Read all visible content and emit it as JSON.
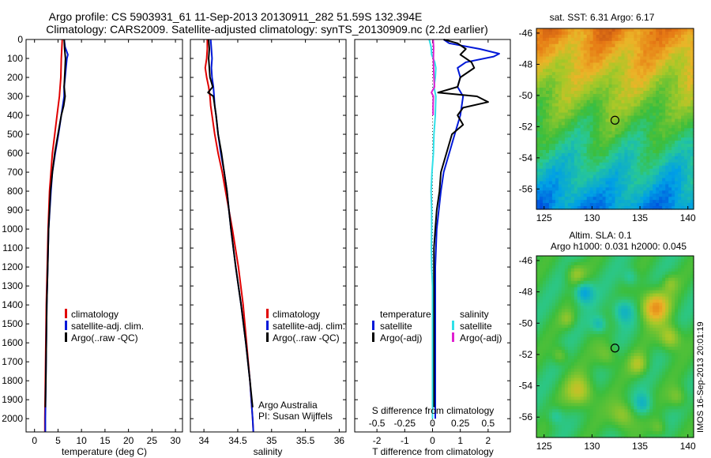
{
  "header": {
    "line1": "Argo profile: CS 5903931_61 11-Sep-2013 20130911_282 51.59S 132.394E",
    "line2": "Climatology: CARS2009. Satellite-adjusted climatology: synTS_20130909.nc (2.2d earlier)"
  },
  "chart_data": [
    {
      "type": "line",
      "panel": "temperature",
      "xlabel": "temperature (deg C)",
      "ylabel": "",
      "xlim": [
        -1.8,
        31.5
      ],
      "ylim": [
        2070,
        0
      ],
      "xticks": [
        0,
        5,
        10,
        15,
        20,
        25,
        30
      ],
      "yticks": [
        0,
        100,
        200,
        300,
        400,
        500,
        600,
        700,
        800,
        900,
        1000,
        1100,
        1200,
        1300,
        1400,
        1500,
        1600,
        1700,
        1800,
        1900,
        2000
      ],
      "legend": [
        "climatology",
        "satellite-adj. clim.",
        "Argo(..raw -QC)"
      ],
      "legend_position": "lower-right",
      "series": [
        {
          "name": "climatology",
          "color": "#e00000",
          "depth": [
            0,
            100,
            200,
            300,
            400,
            500,
            600,
            700,
            800,
            1000,
            1200,
            1400,
            1600,
            1800,
            2000,
            2070
          ],
          "values": [
            5.9,
            5.7,
            5.6,
            5.3,
            4.8,
            4.3,
            3.8,
            3.5,
            3.2,
            2.9,
            2.7,
            2.5,
            2.4,
            2.3,
            2.2,
            2.2
          ]
        },
        {
          "name": "satellite-adj. clim.",
          "color": "#0018d8",
          "depth": [
            0,
            40,
            80,
            100,
            150,
            200,
            250,
            300,
            400,
            500,
            600,
            700,
            800,
            1000,
            1200,
            1400,
            1600,
            1800,
            2000,
            2070
          ],
          "values": [
            6.3,
            6.5,
            7.1,
            6.9,
            6.7,
            6.5,
            6.3,
            6.3,
            5.7,
            5.1,
            4.4,
            3.8,
            3.5,
            3.0,
            2.8,
            2.6,
            2.5,
            2.4,
            2.3,
            2.3
          ]
        },
        {
          "name": "Argo(..raw -QC)",
          "color": "#000000",
          "depth": [
            0,
            50,
            100,
            150,
            200,
            250,
            300,
            350,
            400,
            500,
            600,
            700,
            800,
            1000,
            1200,
            1400,
            1600,
            1800,
            1940
          ],
          "values": [
            6.3,
            6.4,
            6.6,
            6.5,
            6.4,
            6.3,
            6.5,
            6.2,
            5.7,
            5.0,
            4.3,
            3.8,
            3.4,
            3.0,
            2.8,
            2.6,
            2.5,
            2.4,
            2.3
          ]
        }
      ]
    },
    {
      "type": "line",
      "panel": "salinity",
      "xlabel": "salinity",
      "ylabel": "",
      "xlim": [
        33.8,
        36.1
      ],
      "ylim": [
        2070,
        0
      ],
      "xticks": [
        34,
        34.5,
        35,
        35.5,
        36
      ],
      "legend": [
        "climatology",
        "satellite-adj. clim.",
        "Argo(..raw -QC)"
      ],
      "legend_position": "lower-right",
      "annotations": [
        "Argo Australia",
        "PI: Susan Wijffels"
      ],
      "series": [
        {
          "name": "climatology",
          "color": "#e00000",
          "depth": [
            0,
            50,
            100,
            150,
            200,
            250,
            300,
            350,
            400,
            500,
            600,
            700,
            800,
            900,
            1000,
            1200,
            1400,
            1600,
            1800,
            2000,
            2070
          ],
          "values": [
            34.05,
            34.05,
            34.04,
            34.02,
            34.04,
            34.07,
            34.09,
            34.1,
            34.12,
            34.16,
            34.21,
            34.27,
            34.32,
            34.37,
            34.42,
            34.51,
            34.58,
            34.63,
            34.68,
            34.72,
            34.73
          ]
        },
        {
          "name": "satellite-adj. clim.",
          "color": "#0018d8",
          "depth": [
            0,
            50,
            100,
            150,
            200,
            250,
            300,
            350,
            400,
            500,
            600,
            700,
            800,
            900,
            1000,
            1200,
            1400,
            1600,
            1800,
            2000,
            2070
          ],
          "values": [
            34.1,
            34.11,
            34.12,
            34.11,
            34.12,
            34.14,
            34.15,
            34.16,
            34.18,
            34.21,
            34.25,
            34.3,
            34.34,
            34.37,
            34.4,
            34.47,
            34.55,
            34.62,
            34.68,
            34.72,
            34.73
          ]
        },
        {
          "name": "Argo(..raw -QC)",
          "color": "#000000",
          "depth": [
            0,
            50,
            100,
            150,
            200,
            250,
            280,
            300,
            350,
            400,
            500,
            600,
            700,
            800,
            900,
            1000,
            1200,
            1400,
            1600,
            1800,
            1940
          ],
          "values": [
            34.07,
            34.08,
            34.07,
            34.08,
            34.09,
            34.13,
            34.06,
            34.14,
            34.16,
            34.18,
            34.21,
            34.26,
            34.3,
            34.34,
            34.37,
            34.4,
            34.47,
            34.55,
            34.62,
            34.68,
            34.72
          ]
        }
      ]
    },
    {
      "type": "line",
      "panel": "difference",
      "xlabel": "T difference from climatology",
      "xlabel_top": "S difference from climatology",
      "xlim": [
        -2.8,
        2.8
      ],
      "ylim": [
        2070,
        0
      ],
      "xticks": [
        -2,
        -1,
        0,
        1,
        2
      ],
      "xticks_S": [
        "-0.5",
        "-0.25",
        "0",
        "0.25",
        "0.5"
      ],
      "legend_groups": [
        {
          "title": "temperature",
          "items": [
            "satellite",
            "Argo(-adj)"
          ]
        },
        {
          "title": "salinity",
          "items": [
            "satellite",
            "Argo(-adj)"
          ]
        }
      ],
      "series": [
        {
          "name": "temperature satellite",
          "color": "#0018d8",
          "depth": [
            0,
            20,
            50,
            75,
            90,
            120,
            150,
            200,
            250,
            300,
            400,
            500,
            600,
            700,
            800,
            1000,
            1200,
            1400,
            1600,
            1800,
            2000
          ],
          "values": [
            0.4,
            0.6,
            1.7,
            2.4,
            2.2,
            1.2,
            0.9,
            1.0,
            0.9,
            1.1,
            1.0,
            0.8,
            0.6,
            0.4,
            0.3,
            0.15,
            0.1,
            0.1,
            0.1,
            0.1,
            0.1
          ]
        },
        {
          "name": "temperature Argo(-adj)",
          "color": "#000000",
          "depth": [
            0,
            20,
            50,
            80,
            120,
            150,
            200,
            250,
            280,
            300,
            330,
            360,
            400,
            450,
            500,
            600,
            700,
            800,
            900,
            1000,
            1100,
            1200,
            1400,
            1600,
            1800,
            1940
          ],
          "values": [
            0.4,
            0.9,
            1.2,
            1.0,
            1.4,
            1.5,
            1.0,
            0.9,
            0.2,
            1.6,
            2.0,
            1.1,
            0.9,
            1.1,
            0.7,
            0.5,
            0.3,
            0.25,
            0.15,
            0.1,
            0.05,
            0.05,
            0.05,
            0.05,
            0.05,
            0.05
          ]
        },
        {
          "name": "salinity satellite",
          "color": "#30e0e8",
          "depth": [
            0,
            40,
            80,
            120,
            150,
            200,
            250,
            300,
            400,
            500,
            600,
            700,
            800,
            900,
            1000,
            1100,
            1200,
            1300,
            1400,
            1600,
            1800,
            2000
          ],
          "values": [
            -0.12,
            -0.05,
            -0.03,
            0.08,
            0.12,
            0.1,
            0.05,
            0.12,
            0.1,
            0.05,
            0.03,
            -0.02,
            -0.05,
            -0.03,
            -0.03,
            -0.04,
            -0.03,
            0.0,
            0.0,
            0.0,
            0.0,
            0.0
          ]
        },
        {
          "name": "salinity Argo(-adj)",
          "color": "#e020d0",
          "depth": [
            0,
            40,
            100,
            150,
            200,
            250,
            280,
            300,
            350,
            400
          ],
          "values": [
            0.02,
            0.04,
            0.03,
            0.04,
            0.05,
            0.07,
            -0.04,
            0.03,
            0.02,
            0.02
          ]
        }
      ]
    },
    {
      "type": "heatmap",
      "panel": "sst-map",
      "title": "sat. SST: 6.31  Argo: 6.17",
      "xticks": [
        125,
        130,
        135,
        140
      ],
      "yticks": [
        -46,
        -48,
        -50,
        -52,
        -54,
        -56
      ],
      "xlim": [
        124.2,
        140.6
      ],
      "ylim": [
        -57.3,
        -45.7
      ],
      "marker": {
        "lon": 132.394,
        "lat": -51.59
      }
    },
    {
      "type": "heatmap",
      "panel": "sla-map",
      "title": "Altim. SLA: 0.1",
      "subtitle": "Argo h1000: 0.031  h2000: 0.045",
      "xticks": [
        125,
        130,
        135,
        140
      ],
      "yticks": [
        -46,
        -48,
        -50,
        -52,
        -54,
        -56
      ],
      "xlim": [
        124.2,
        140.6
      ],
      "ylim": [
        -57.3,
        -45.7
      ],
      "marker": {
        "lon": 132.394,
        "lat": -51.59
      }
    }
  ],
  "side_stamp": "IMOS 16-Sep-2013 20:01:19",
  "colors": {
    "climatology": "#e00000",
    "satellite": "#0018d8",
    "argo": "#000000",
    "sal_satellite": "#30e0e8",
    "sal_argo": "#e020d0"
  }
}
